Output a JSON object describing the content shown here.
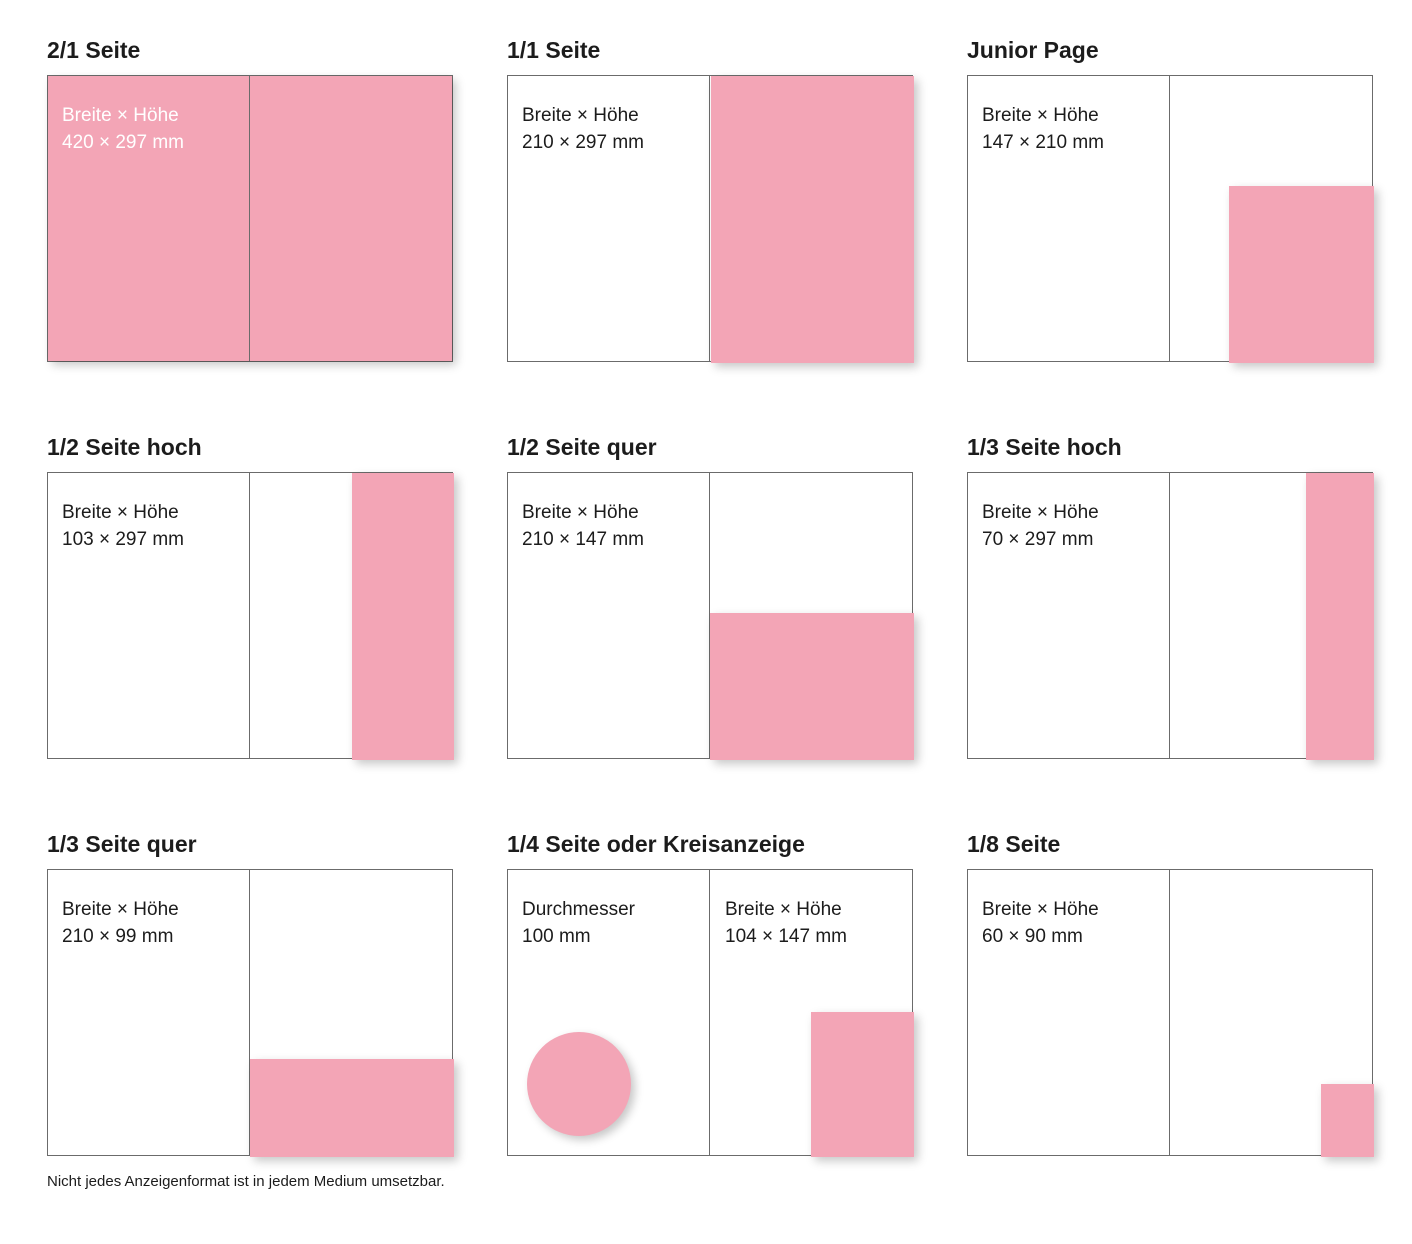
{
  "colors": {
    "ad_pink": "#F3A5B6",
    "border_gray": "#6b6b6b",
    "text_dark": "#1c1c1c",
    "label_on_pink": "#ffffff"
  },
  "footer_note": "Nicht jedes Anzeigenformat ist in jedem Medium umsetzbar.",
  "cards": [
    {
      "title": "2/1 Seite",
      "dim_label": "Breite × Höhe",
      "dim_value": "420 × 297 mm"
    },
    {
      "title": "1/1 Seite",
      "dim_label": "Breite × Höhe",
      "dim_value": "210 × 297 mm"
    },
    {
      "title": "Junior Page",
      "dim_label": "Breite × Höhe",
      "dim_value": "147 × 210 mm"
    },
    {
      "title": "1/2 Seite hoch",
      "dim_label": "Breite × Höhe",
      "dim_value": "103 × 297 mm"
    },
    {
      "title": "1/2 Seite quer",
      "dim_label": "Breite × Höhe",
      "dim_value": "210 × 147 mm"
    },
    {
      "title": "1/3 Seite hoch",
      "dim_label": "Breite × Höhe",
      "dim_value": "70 × 297 mm"
    },
    {
      "title": "1/3 Seite quer",
      "dim_label": "Breite × Höhe",
      "dim_value": "210 × 99 mm"
    },
    {
      "title": "1/4 Seite oder Kreisanzeige",
      "dim_label": "Durchmesser",
      "dim_value": "100 mm",
      "dim_label2": "Breite × Höhe",
      "dim_value2": "104 × 147 mm"
    },
    {
      "title": "1/8 Seite",
      "dim_label": "Breite × Höhe",
      "dim_value": "60 × 90 mm"
    }
  ]
}
